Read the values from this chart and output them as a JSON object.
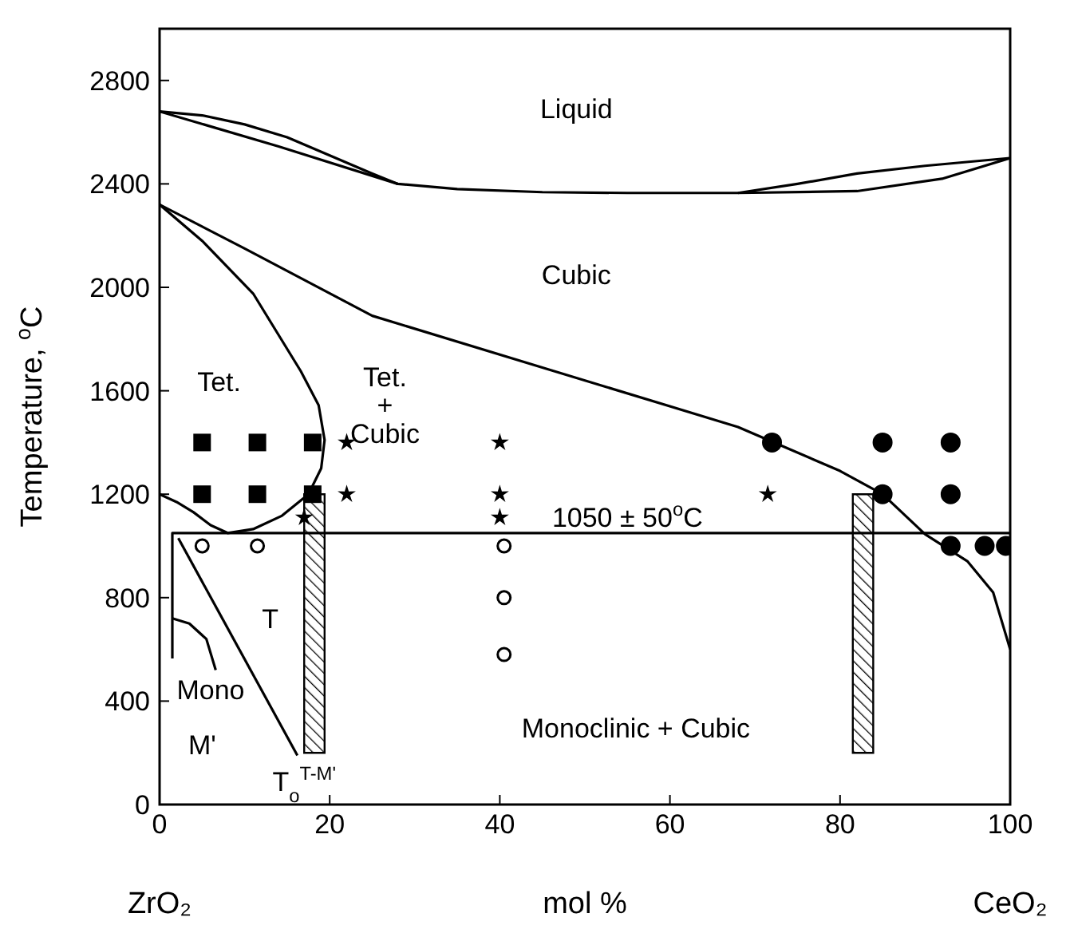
{
  "chart_data": {
    "type": "line",
    "xlabel": "mol %",
    "ylabel": "Temperature, $^{o}$C",
    "xlim": [
      0,
      100
    ],
    "ylim": [
      0,
      3000
    ],
    "xticks": [
      0,
      20,
      40,
      60,
      80,
      100
    ],
    "yticks": [
      0,
      400,
      800,
      1200,
      1600,
      2000,
      2400,
      2800
    ],
    "grid": false,
    "legend": false,
    "line_style": "solid",
    "marker": "none",
    "series": [
      {
        "color": "#000000",
        "x": [
          0,
          5,
          10,
          15,
          20,
          25,
          28
        ],
        "values": [
          2680,
          2665,
          2630,
          2580,
          2510,
          2440,
          2400
        ]
      },
      {
        "color": "#000000",
        "x": [
          0,
          14,
          28,
          35,
          45,
          55,
          68,
          82,
          92,
          100
        ],
        "values": [
          2680,
          2545,
          2400,
          2380,
          2368,
          2365,
          2365,
          2372,
          2420,
          2500
        ]
      },
      {
        "color": "#000000",
        "x": [
          68,
          75,
          82,
          90,
          100
        ],
        "values": [
          2365,
          2400,
          2440,
          2470,
          2500
        ]
      },
      {
        "color": "#000000",
        "x": [
          0,
          10,
          25,
          46,
          68,
          80,
          85,
          90,
          95,
          98,
          100
        ],
        "values": [
          2320,
          2150,
          1890,
          1680,
          1460,
          1290,
          1200,
          1045,
          940,
          820,
          600
        ]
      },
      {
        "color": "#000000",
        "x": [
          0,
          5,
          11,
          16.6,
          18.7,
          19.4,
          19,
          17.5,
          14.4,
          11,
          8,
          6,
          4,
          2,
          0
        ],
        "values": [
          2320,
          2180,
          1976,
          1676,
          1544,
          1410,
          1300,
          1200,
          1117,
          1065,
          1050,
          1080,
          1130,
          1170,
          1200
        ]
      },
      {
        "color": "#000000",
        "x": [
          1.5,
          1.5,
          100
        ],
        "values": [
          565,
          1050,
          1050
        ]
      },
      {
        "color": "#000000",
        "x": [
          1.5,
          3.5,
          5.5,
          6.6
        ],
        "values": [
          720,
          700,
          640,
          520
        ]
      },
      {
        "color": "#000000",
        "x": [
          2.2,
          16.2
        ],
        "values": [
          1030,
          190
        ]
      },
      {
        "type": "bar",
        "color": "#000000",
        "x": [
          18.2,
          82.7
        ],
        "base": [
          200,
          200
        ],
        "values": [
          1000,
          1000
        ]
      },
      {
        "type": "scatter",
        "marker": "square",
        "color": "#000000",
        "x": [
          5,
          11.5,
          18,
          5,
          11.5,
          18
        ],
        "values": [
          1400,
          1400,
          1400,
          1200,
          1200,
          1200
        ]
      },
      {
        "type": "scatter",
        "marker": "star",
        "color": "#000000",
        "x": [
          22,
          40,
          22,
          40,
          71.5,
          17,
          40
        ],
        "values": [
          1400,
          1400,
          1200,
          1200,
          1200,
          1110,
          1110
        ]
      },
      {
        "type": "scatter",
        "marker": "circle",
        "color": "#000000",
        "x": [
          72,
          85,
          93,
          85,
          93,
          93,
          97,
          99.5
        ],
        "values": [
          1400,
          1400,
          1400,
          1200,
          1200,
          1000,
          1000,
          1000
        ]
      },
      {
        "type": "scatter",
        "marker": "circle",
        "color": "#ffffff",
        "x": [
          5,
          11.5,
          40.5,
          40.5,
          40.5
        ],
        "values": [
          1000,
          1000,
          1000,
          800,
          580
        ]
      }
    ],
    "annotations": [
      "Liquid",
      "Cubic",
      "Tet.",
      "Tet.\n+\nCubic",
      "T",
      "Mono",
      "M'",
      "Monoclinic + Cubic",
      "1050 ± 50$^{o}$C",
      "T$_{o}$$^{T-M'}$",
      "ZrO₂",
      "CeO₂"
    ]
  }
}
